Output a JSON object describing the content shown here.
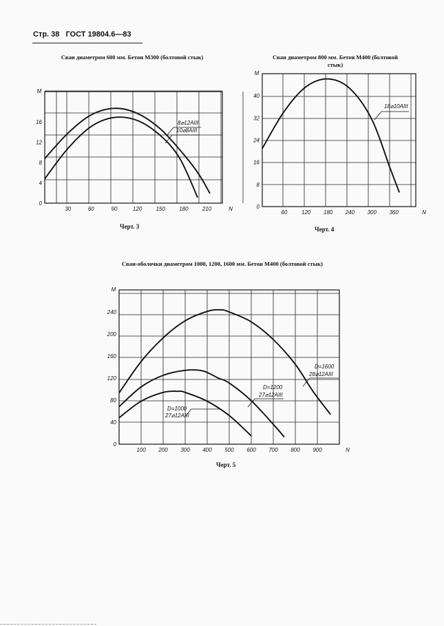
{
  "header": {
    "page": "Стр. 38",
    "standard": "ГОСТ 19804.6—83"
  },
  "chart_data": [
    {
      "type": "line",
      "title": "Сваи диаметром 600 мм. Бетон М300 (болтовой стык)",
      "caption": "Черт. 3",
      "xlabel": "N",
      "ylabel": "M",
      "xlim": [
        0,
        230
      ],
      "ylim": [
        0,
        22
      ],
      "xticks": [
        "30",
        "60",
        "90",
        "120",
        "150",
        "180",
        "210"
      ],
      "yticks": [
        "0",
        "4",
        "8",
        "12",
        "16"
      ],
      "series": [
        {
          "name": "8⌀12АIII",
          "x": [
            0,
            30,
            60,
            90,
            120,
            150,
            180,
            200,
            214
          ],
          "y": [
            8.8,
            13.8,
            17.4,
            18.7,
            17.7,
            14.6,
            9.6,
            5.6,
            1.9
          ]
        },
        {
          "name": "10⌀8АIII",
          "x": [
            0,
            30,
            60,
            90,
            120,
            150,
            175,
            198
          ],
          "y": [
            4.8,
            10.8,
            15.1,
            16.9,
            16.3,
            13.3,
            8.8,
            1.1
          ]
        }
      ],
      "labels": [
        "8⌀12АIII",
        "10⌀8АIII"
      ]
    },
    {
      "type": "line",
      "title": "Сваи диаметром 800 мм. Бетон М400 (болтовой стык)",
      "caption": "Черт. 4",
      "xlabel": "N",
      "ylabel": "M",
      "xlim": [
        0,
        420
      ],
      "ylim": [
        0,
        48
      ],
      "xticks": [
        "60",
        "120",
        "180",
        "240",
        "300",
        "360"
      ],
      "yticks": [
        "0",
        "8",
        "16",
        "24",
        "32",
        "40"
      ],
      "series": [
        {
          "name": "18⌀10АIII",
          "x": [
            0,
            60,
            120,
            180,
            240,
            300,
            350,
            375
          ],
          "y": [
            21,
            34.4,
            43.3,
            46.1,
            42.6,
            31.4,
            13.8,
            5.1
          ]
        }
      ],
      "labels": [
        "18⌀10АIII"
      ]
    },
    {
      "type": "line",
      "title": "Сваи-оболочки диаметром 1000, 1200, 1600 мм. Бетон М400 (болтовой стык)",
      "caption": "Черт. 5",
      "xlabel": "N",
      "ylabel": "M",
      "xlim": [
        0,
        1000
      ],
      "ylim": [
        0,
        280
      ],
      "xticks": [
        "100",
        "200",
        "300",
        "400",
        "500",
        "600",
        "700",
        "800",
        "900"
      ],
      "yticks": [
        "0",
        "40",
        "80",
        "120",
        "160",
        "200",
        "240"
      ],
      "series": [
        {
          "name": "D=1600 28⌀12АIII",
          "x": [
            0,
            100,
            200,
            300,
            400,
            460,
            500,
            600,
            700,
            800,
            880,
            960
          ],
          "y": [
            93,
            150,
            193,
            224,
            241,
            244,
            240,
            222,
            190,
            145,
            96,
            54
          ]
        },
        {
          "name": "D=1200 27⌀12АIII",
          "x": [
            0,
            100,
            200,
            300,
            380,
            450,
            500,
            600,
            700,
            750
          ],
          "y": [
            68,
            104,
            125,
            134,
            133,
            120,
            111,
            79,
            36,
            13
          ]
        },
        {
          "name": "D=1000 27⌀12АIII",
          "x": [
            0,
            100,
            200,
            270,
            300,
            400,
            500,
            600
          ],
          "y": [
            48,
            78,
            94,
            96,
            94,
            78,
            52,
            15
          ]
        }
      ],
      "labels": [
        "D=1600",
        "28⌀12АIII",
        "D=1200",
        "27⌀12АIII",
        "D=1000",
        "27⌀12АIII"
      ]
    }
  ]
}
